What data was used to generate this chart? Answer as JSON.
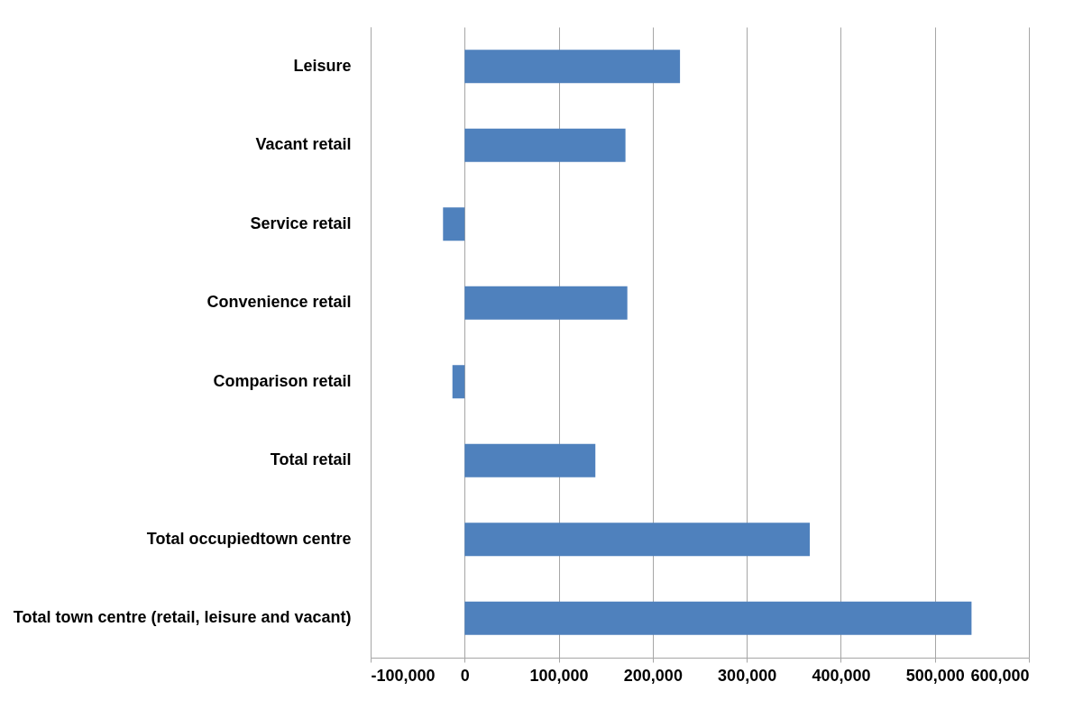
{
  "chart_data": {
    "type": "bar",
    "orientation": "horizontal",
    "categories": [
      "Leisure",
      "Vacant retail",
      "Service retail",
      "Convenience retail",
      "Comparison retail",
      "Total retail",
      "Total occupiedtown centre",
      "Total town centre (retail, leisure and vacant)"
    ],
    "values": [
      229000,
      171000,
      -23000,
      173000,
      -13000,
      139000,
      367000,
      539000
    ],
    "color": "#4f81bd",
    "xlim": [
      -100000,
      600000
    ],
    "xticks": [
      {
        "value": -100000,
        "label": "-100,000"
      },
      0,
      {
        "value": 100000,
        "label": "100,000"
      },
      {
        "value": 200000,
        "label": "200,000"
      },
      {
        "value": 300000,
        "label": "300,000"
      },
      {
        "value": 400000,
        "label": "400,000"
      },
      {
        "value": 500000,
        "label": "500,000"
      },
      {
        "value": 600000,
        "label": "600,000"
      }
    ],
    "grid": "x"
  }
}
